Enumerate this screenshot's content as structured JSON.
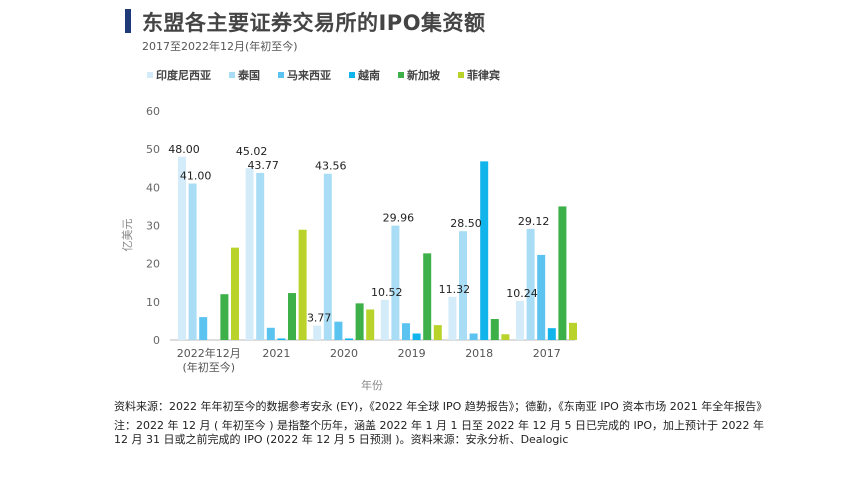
{
  "header": {
    "title": "东盟各主要证券交易所的IPO集资额",
    "subtitle": "2017至2022年12月(年初至今)",
    "accent_color": "#1f3a78"
  },
  "chart_data": {
    "type": "bar",
    "title": "东盟各主要证券交易所的IPO集资额",
    "subtitle": "2017至2022年12月(年初至今)",
    "xlabel": "年份",
    "ylabel": "亿美元",
    "ylim": [
      0,
      60
    ],
    "yticks": [
      0,
      10,
      20,
      30,
      40,
      50,
      60
    ],
    "legend_position": "top",
    "grid": false,
    "categories": [
      "2022年12月\n(年初至今)",
      "2021",
      "2020",
      "2019",
      "2018",
      "2017"
    ],
    "series": [
      {
        "name": "印度尼西亚",
        "color": "#d4ecf9",
        "values": [
          48.0,
          45.02,
          3.77,
          10.52,
          11.32,
          10.24
        ],
        "labels": [
          "48.00",
          "45.02",
          "3.77",
          "10.52",
          "11.32",
          "10.24"
        ]
      },
      {
        "name": "泰国",
        "color": "#a9dcf5",
        "values": [
          41.0,
          43.77,
          43.56,
          29.96,
          28.5,
          29.12
        ],
        "labels": [
          "41.00",
          "43.77",
          "43.56",
          "29.96",
          "28.50",
          "29.12"
        ]
      },
      {
        "name": "马来西亚",
        "color": "#5bc3ef",
        "values": [
          6.0,
          3.2,
          4.8,
          4.4,
          1.7,
          22.3
        ]
      },
      {
        "name": "越南",
        "color": "#12b4ec",
        "values": [
          0,
          0.4,
          0.4,
          1.7,
          46.8,
          3.1
        ]
      },
      {
        "name": "新加坡",
        "color": "#3db049",
        "values": [
          12.0,
          12.3,
          9.6,
          22.7,
          5.5,
          35.0
        ]
      },
      {
        "name": "菲律宾",
        "color": "#b9d32a",
        "values": [
          24.2,
          28.9,
          8.0,
          3.9,
          1.5,
          4.5
        ]
      }
    ]
  },
  "notes": {
    "source": "资料来源：2022 年年初至今的数据参考安永 (EY)，《2022 年全球 IPO 趋势报告》；德勤，《东南亚 IPO 资本市场 2021 年全年报告》",
    "note": "注：2022 年 12 月 ( 年初至今 ) 是指整个历年，涵盖 2022 年 1 月 1 日至 2022 年 12 月 5 日已完成的 IPO，加上预计于 2022 年 12 月 31 日或之前完成的 IPO (2022 年 12 月 5 日预测 )。资料来源：安永分析、Dealogic"
  }
}
